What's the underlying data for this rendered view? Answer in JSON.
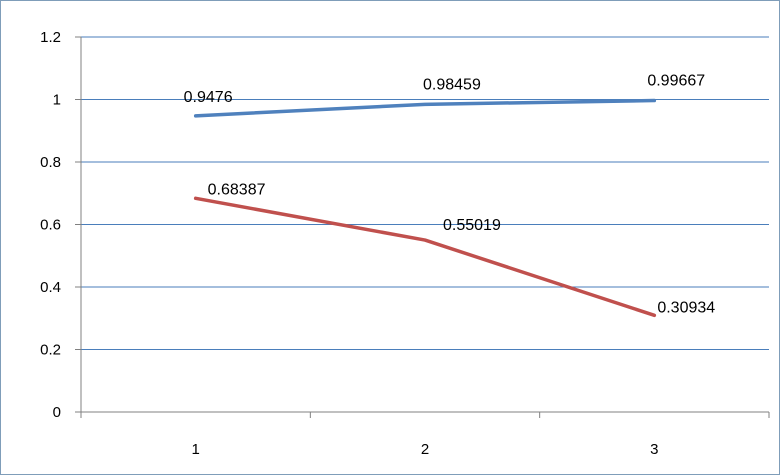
{
  "chart_data": {
    "type": "line",
    "title": "",
    "xlabel": "",
    "ylabel": "",
    "categories": [
      "1",
      "2",
      "3"
    ],
    "ylim": [
      0,
      1.2
    ],
    "y_ticks": [
      "0",
      "0.2",
      "0.4",
      "0.6",
      "0.8",
      "1",
      "1.2"
    ],
    "grid": true,
    "legend": "none",
    "series": [
      {
        "color": "#4f81bd",
        "values": [
          0.9476,
          0.98459,
          0.99667
        ],
        "labels": [
          "0.9476",
          "0.98459",
          "0.99667"
        ]
      },
      {
        "color": "#c0504d",
        "values": [
          0.68387,
          0.55019,
          0.30934
        ],
        "labels": [
          "0.68387",
          "0.55019",
          "0.30934"
        ]
      }
    ]
  }
}
